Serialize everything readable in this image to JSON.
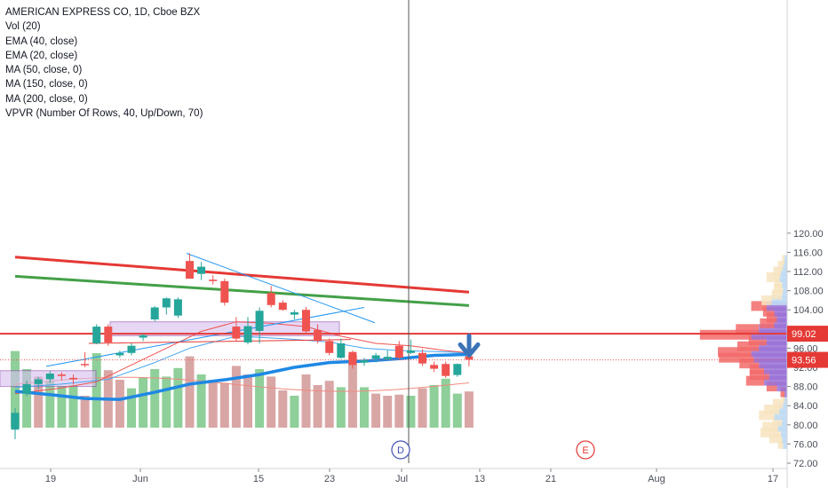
{
  "legend": {
    "title": "AMERICAN EXPRESS CO, 1D, Cboe BZX",
    "indicators": [
      "Vol (20)",
      "EMA (40, close)",
      "EMA (20, close)",
      "MA (50, close, 0)",
      "MA (150, close, 0)",
      "MA (200, close, 0)",
      "VPVR (Number Of Rows, 40, Up/Down, 70)"
    ]
  },
  "markers": {
    "dividend": "D",
    "earnings": "E"
  },
  "price_labels": {
    "resistance": "99.02",
    "last": "93.56"
  },
  "colors": {
    "up": "#26a69a",
    "down": "#ef5350",
    "ma50": "#1e88e5",
    "ma150": "#e53935",
    "ma200": "#43a047",
    "ema": "#ef5350",
    "ema2": "#42a5f5",
    "resistance": "#e53935",
    "box": "#d6bff0",
    "arrow": "#3a73b8"
  },
  "chart_data": {
    "type": "candlestick",
    "title": "AMERICAN EXPRESS CO, 1D, Cboe BZX",
    "y_axis": {
      "range": [
        72,
        121
      ],
      "ticks": [
        "72.00",
        "76.00",
        "80.00",
        "84.00",
        "88.00",
        "92.00",
        "96.00",
        "100.00",
        "104.00",
        "108.00",
        "112.00",
        "116.00",
        "120.00"
      ]
    },
    "x_axis": {
      "ticks": [
        "19",
        "Jun",
        "15",
        "23",
        "Jul",
        "13",
        "21",
        "Aug",
        "17"
      ]
    },
    "candles": [
      {
        "o": 79.0,
        "h": 83.5,
        "l": 77.0,
        "c": 82.5
      },
      {
        "o": 86.5,
        "h": 89.2,
        "l": 86.0,
        "c": 88.5
      },
      {
        "o": 88.5,
        "h": 90.0,
        "l": 87.5,
        "c": 89.5
      },
      {
        "o": 89.5,
        "h": 91.2,
        "l": 88.8,
        "c": 90.7
      },
      {
        "o": 90.5,
        "h": 91.0,
        "l": 89.3,
        "c": 90.2
      },
      {
        "o": 89.8,
        "h": 90.5,
        "l": 88.4,
        "c": 89.5
      },
      {
        "o": 92.7,
        "h": 95.2,
        "l": 92.0,
        "c": 92.5
      },
      {
        "o": 97.0,
        "h": 101.0,
        "l": 96.8,
        "c": 100.5
      },
      {
        "o": 100.5,
        "h": 101.0,
        "l": 96.5,
        "c": 97.2
      },
      {
        "o": 94.5,
        "h": 95.5,
        "l": 94.0,
        "c": 95.0
      },
      {
        "o": 95.0,
        "h": 97.0,
        "l": 94.5,
        "c": 96.5
      },
      {
        "o": 98.2,
        "h": 99.0,
        "l": 97.5,
        "c": 98.7
      },
      {
        "o": 102.0,
        "h": 104.8,
        "l": 101.6,
        "c": 104.5
      },
      {
        "o": 104.5,
        "h": 106.6,
        "l": 103.0,
        "c": 106.4
      },
      {
        "o": 102.8,
        "h": 106.6,
        "l": 102.3,
        "c": 106.2
      },
      {
        "o": 114.2,
        "h": 115.8,
        "l": 110.8,
        "c": 110.5
      },
      {
        "o": 111.5,
        "h": 114.0,
        "l": 110.2,
        "c": 113.0
      },
      {
        "o": 110.3,
        "h": 111.2,
        "l": 109.3,
        "c": 110.0
      },
      {
        "o": 110.0,
        "h": 110.5,
        "l": 104.9,
        "c": 105.5
      },
      {
        "o": 100.5,
        "h": 102.5,
        "l": 97.5,
        "c": 98.0
      },
      {
        "o": 97.2,
        "h": 102.5,
        "l": 96.8,
        "c": 100.6
      },
      {
        "o": 99.6,
        "h": 104.5,
        "l": 97.0,
        "c": 103.8
      },
      {
        "o": 107.5,
        "h": 109.0,
        "l": 104.5,
        "c": 105.0
      },
      {
        "o": 105.5,
        "h": 106.0,
        "l": 103.8,
        "c": 104.0
      },
      {
        "o": 103.0,
        "h": 104.0,
        "l": 102.0,
        "c": 103.5
      },
      {
        "o": 104.0,
        "h": 104.6,
        "l": 99.0,
        "c": 99.5
      },
      {
        "o": 99.8,
        "h": 101.0,
        "l": 97.0,
        "c": 97.5
      },
      {
        "o": 97.5,
        "h": 98.0,
        "l": 94.5,
        "c": 95.0
      },
      {
        "o": 94.0,
        "h": 98.0,
        "l": 93.8,
        "c": 97.0
      },
      {
        "o": 95.2,
        "h": 95.5,
        "l": 91.7,
        "c": 92.5
      },
      {
        "o": 93.0,
        "h": 94.0,
        "l": 92.3,
        "c": 93.5
      },
      {
        "o": 93.8,
        "h": 95.0,
        "l": 93.0,
        "c": 94.5
      },
      {
        "o": 93.7,
        "h": 95.5,
        "l": 93.5,
        "c": 94.2
      },
      {
        "o": 96.5,
        "h": 97.5,
        "l": 93.6,
        "c": 94.0
      },
      {
        "o": 95.0,
        "h": 97.8,
        "l": 94.8,
        "c": 95.5
      },
      {
        "o": 95.0,
        "h": 95.8,
        "l": 92.3,
        "c": 92.8
      },
      {
        "o": 92.5,
        "h": 93.2,
        "l": 91.0,
        "c": 91.7
      },
      {
        "o": 92.7,
        "h": 93.2,
        "l": 89.8,
        "c": 90.2
      },
      {
        "o": 90.4,
        "h": 92.8,
        "l": 90.0,
        "c": 92.7
      },
      {
        "o": 94.3,
        "h": 95.0,
        "l": 92.2,
        "c": 93.6
      }
    ],
    "volume": [
      {
        "v": 0.72,
        "d": "up"
      },
      {
        "v": 0.55,
        "d": "up"
      },
      {
        "v": 0.48,
        "d": "down"
      },
      {
        "v": 0.44,
        "d": "up"
      },
      {
        "v": 0.39,
        "d": "up"
      },
      {
        "v": 0.4,
        "d": "up"
      },
      {
        "v": 0.3,
        "d": "down"
      },
      {
        "v": 0.7,
        "d": "up"
      },
      {
        "v": 0.54,
        "d": "down"
      },
      {
        "v": 0.45,
        "d": "down"
      },
      {
        "v": 0.37,
        "d": "up"
      },
      {
        "v": 0.47,
        "d": "up"
      },
      {
        "v": 0.55,
        "d": "up"
      },
      {
        "v": 0.48,
        "d": "up"
      },
      {
        "v": 0.56,
        "d": "up"
      },
      {
        "v": 0.67,
        "d": "down"
      },
      {
        "v": 0.5,
        "d": "up"
      },
      {
        "v": 0.45,
        "d": "down"
      },
      {
        "v": 0.42,
        "d": "down"
      },
      {
        "v": 0.58,
        "d": "down"
      },
      {
        "v": 0.5,
        "d": "down"
      },
      {
        "v": 0.55,
        "d": "up"
      },
      {
        "v": 0.48,
        "d": "down"
      },
      {
        "v": 0.35,
        "d": "down"
      },
      {
        "v": 0.3,
        "d": "up"
      },
      {
        "v": 0.5,
        "d": "down"
      },
      {
        "v": 0.4,
        "d": "down"
      },
      {
        "v": 0.44,
        "d": "down"
      },
      {
        "v": 0.38,
        "d": "up"
      },
      {
        "v": 0.68,
        "d": "down"
      },
      {
        "v": 0.38,
        "d": "up"
      },
      {
        "v": 0.32,
        "d": "down"
      },
      {
        "v": 0.3,
        "d": "down"
      },
      {
        "v": 0.31,
        "d": "down"
      },
      {
        "v": 0.3,
        "d": "up"
      },
      {
        "v": 0.37,
        "d": "down"
      },
      {
        "v": 0.4,
        "d": "up"
      },
      {
        "v": 0.46,
        "d": "up"
      },
      {
        "v": 0.32,
        "d": "up"
      },
      {
        "v": 0.34,
        "d": "down"
      }
    ],
    "vpvr": [
      {
        "p": 76.0,
        "up": 0.08,
        "down": 0.1
      },
      {
        "p": 77.2,
        "up": 0.1,
        "down": 0.25
      },
      {
        "p": 78.4,
        "up": 0.12,
        "down": 0.4
      },
      {
        "p": 79.6,
        "up": 0.18,
        "down": 0.3
      },
      {
        "p": 80.8,
        "up": 0.1,
        "down": 0.18
      },
      {
        "p": 82.0,
        "up": 0.25,
        "down": 0.3
      },
      {
        "p": 83.2,
        "up": 0.15,
        "down": 0.3
      },
      {
        "p": 84.4,
        "up": 0.08,
        "down": 0.2
      },
      {
        "p": 85.6,
        "up": 0.05,
        "down": 0.05
      },
      {
        "p": 86.8,
        "up": 0.05,
        "down": 0.08
      },
      {
        "p": 88.0,
        "up": 0.2,
        "down": 0.2
      },
      {
        "p": 89.2,
        "up": 0.45,
        "down": 0.35
      },
      {
        "p": 90.4,
        "up": 0.35,
        "down": 0.38
      },
      {
        "p": 91.6,
        "up": 0.45,
        "down": 0.28
      },
      {
        "p": 92.8,
        "up": 0.55,
        "down": 0.38
      },
      {
        "p": 94.0,
        "up": 0.65,
        "down": 0.68
      },
      {
        "p": 95.2,
        "up": 0.7,
        "down": 0.65
      },
      {
        "p": 96.4,
        "up": 0.55,
        "down": 0.42
      },
      {
        "p": 97.6,
        "up": 0.4,
        "down": 0.35
      },
      {
        "p": 98.8,
        "up": 0.7,
        "down": 1.0
      },
      {
        "p": 100.0,
        "up": 0.55,
        "down": 0.45
      },
      {
        "p": 101.2,
        "up": 0.25,
        "down": 0.28
      },
      {
        "p": 102.4,
        "up": 0.2,
        "down": 0.2
      },
      {
        "p": 103.6,
        "up": 0.25,
        "down": 0.22
      },
      {
        "p": 104.8,
        "up": 0.4,
        "down": 0.3
      },
      {
        "p": 106.0,
        "up": 0.3,
        "down": 0.2
      },
      {
        "p": 107.2,
        "up": 0.1,
        "down": 0.2
      },
      {
        "p": 108.4,
        "up": 0.08,
        "down": 0.18
      },
      {
        "p": 109.6,
        "up": 0.1,
        "down": 0.15
      },
      {
        "p": 110.8,
        "up": 0.15,
        "down": 0.25
      },
      {
        "p": 112.0,
        "up": 0.12,
        "down": 0.15
      },
      {
        "p": 113.2,
        "up": 0.08,
        "down": 0.1
      },
      {
        "p": 114.4,
        "up": 0.05,
        "down": 0.05
      }
    ],
    "ma50": [
      [
        0,
        87.0
      ],
      [
        3,
        86.3
      ],
      [
        6,
        85.5
      ],
      [
        9,
        85.3
      ],
      [
        12,
        86.8
      ],
      [
        15,
        88.5
      ],
      [
        18,
        89.4
      ],
      [
        21,
        90.5
      ],
      [
        24,
        92.0
      ],
      [
        27,
        93.0
      ],
      [
        30,
        93.3
      ],
      [
        33,
        93.8
      ],
      [
        36,
        94.5
      ],
      [
        39,
        94.7
      ]
    ],
    "ma150": [
      [
        0,
        115.0
      ],
      [
        39,
        107.7
      ]
    ],
    "ma200": [
      [
        0,
        111.0
      ],
      [
        39,
        104.9
      ]
    ],
    "ema20": [
      [
        0,
        86.5
      ],
      [
        4,
        87.7
      ],
      [
        7,
        89.0
      ],
      [
        10,
        92.5
      ],
      [
        13,
        96.0
      ],
      [
        16,
        99.5
      ],
      [
        19,
        101.5
      ],
      [
        22,
        101.2
      ],
      [
        25,
        100.5
      ],
      [
        28,
        98.5
      ],
      [
        31,
        97.0
      ],
      [
        34,
        96.5
      ],
      [
        37,
        95.5
      ],
      [
        39,
        95.0
      ]
    ],
    "ema40": [
      [
        0,
        87.8
      ],
      [
        4,
        88.5
      ],
      [
        8,
        89.5
      ],
      [
        12,
        93.0
      ],
      [
        15,
        96.0
      ],
      [
        19,
        98.5
      ],
      [
        23,
        98.0
      ],
      [
        27,
        97.3
      ],
      [
        30,
        96.0
      ],
      [
        33,
        95.5
      ],
      [
        36,
        95.3
      ],
      [
        39,
        95.0
      ]
    ],
    "resistance": 99.02,
    "last_price": 93.56
  }
}
